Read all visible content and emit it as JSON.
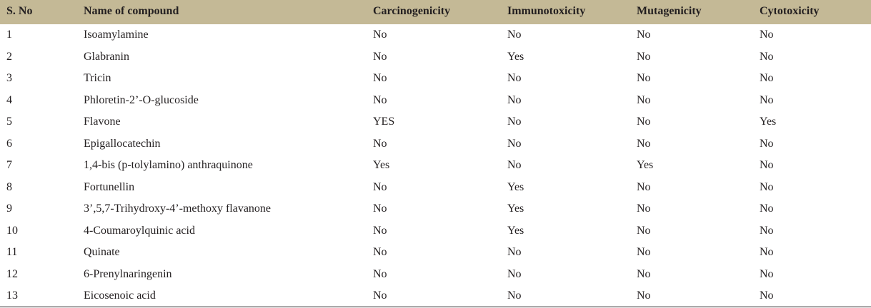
{
  "table": {
    "headers": [
      "S. No",
      "Name of compound",
      "Carcinogenicity",
      "Immunotoxicity",
      "Mutagenicity",
      "Cytotoxicity"
    ],
    "rows": [
      [
        "1",
        "Isoamylamine",
        "No",
        "No",
        "No",
        "No"
      ],
      [
        "2",
        "Glabranin",
        "No",
        "Yes",
        "No",
        "No"
      ],
      [
        "3",
        "Tricin",
        "No",
        "No",
        "No",
        "No"
      ],
      [
        "4",
        "Phloretin-2’-O-glucoside",
        "No",
        "No",
        "No",
        "No"
      ],
      [
        "5",
        "Flavone",
        "YES",
        "No",
        "No",
        "Yes"
      ],
      [
        "6",
        "Epigallocatechin",
        "No",
        "No",
        "No",
        "No"
      ],
      [
        "7",
        "1,4-bis (p-tolylamino) anthraquinone",
        "Yes",
        "No",
        "Yes",
        "No"
      ],
      [
        "8",
        "Fortunellin",
        "No",
        "Yes",
        "No",
        "No"
      ],
      [
        "9",
        "3’,5,7-Trihydroxy-4’-methoxy flavanone",
        "No",
        "Yes",
        "No",
        "No"
      ],
      [
        "10",
        "4-Coumaroylquinic acid",
        "No",
        "Yes",
        "No",
        "No"
      ],
      [
        "11",
        "Quinate",
        "No",
        "No",
        "No",
        "No"
      ],
      [
        "12",
        "6-Prenylnaringenin",
        "No",
        "No",
        "No",
        "No"
      ],
      [
        "13",
        "Eicosenoic acid",
        "No",
        "No",
        "No",
        "No"
      ]
    ]
  },
  "colors": {
    "header_bg": "#c4b996",
    "text": "#231f20"
  }
}
